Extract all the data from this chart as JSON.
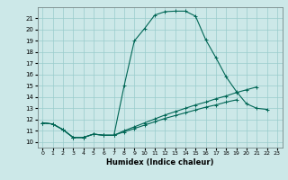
{
  "xlabel": "Humidex (Indice chaleur)",
  "xlim": [
    -0.5,
    23.5
  ],
  "ylim": [
    9.5,
    22.0
  ],
  "xticks": [
    0,
    1,
    2,
    3,
    4,
    5,
    6,
    7,
    8,
    9,
    10,
    11,
    12,
    13,
    14,
    15,
    16,
    17,
    18,
    19,
    20,
    21,
    22,
    23
  ],
  "yticks": [
    10,
    11,
    12,
    13,
    14,
    15,
    16,
    17,
    18,
    19,
    20,
    21
  ],
  "bg_color": "#cce8e8",
  "grid_color": "#99cccc",
  "line_color": "#006655",
  "line1_x": [
    0,
    1,
    2,
    3,
    4,
    5,
    6,
    7,
    8,
    9,
    10,
    11,
    12,
    13,
    14,
    15,
    16,
    17,
    18,
    19,
    20,
    21,
    22
  ],
  "line1_y": [
    11.7,
    11.6,
    11.1,
    10.4,
    10.4,
    10.7,
    10.6,
    10.6,
    15.0,
    19.0,
    20.1,
    21.3,
    21.6,
    21.65,
    21.65,
    21.2,
    19.1,
    17.5,
    15.8,
    14.5,
    13.4,
    13.0,
    12.9
  ],
  "line2_x": [
    0,
    1,
    2,
    3,
    4,
    5,
    6,
    7,
    8,
    9,
    10,
    11,
    12,
    13,
    14,
    15,
    16,
    17,
    18,
    19,
    20,
    21,
    22
  ],
  "line2_y": [
    11.7,
    11.6,
    11.1,
    10.4,
    10.4,
    10.7,
    10.6,
    10.6,
    11.0,
    11.35,
    11.7,
    12.05,
    12.4,
    12.7,
    13.0,
    13.3,
    13.55,
    13.85,
    14.1,
    14.4,
    14.65,
    14.9,
    null
  ],
  "line3_x": [
    0,
    1,
    2,
    3,
    4,
    5,
    6,
    7,
    8,
    9,
    10,
    11,
    12,
    13,
    14,
    15,
    16,
    17,
    18,
    19,
    20,
    21,
    22
  ],
  "line3_y": [
    11.7,
    11.6,
    11.1,
    10.4,
    10.4,
    10.7,
    10.6,
    10.6,
    10.9,
    11.2,
    11.5,
    11.8,
    12.1,
    12.35,
    12.6,
    12.85,
    13.1,
    13.3,
    13.55,
    13.75,
    null,
    null,
    null
  ]
}
